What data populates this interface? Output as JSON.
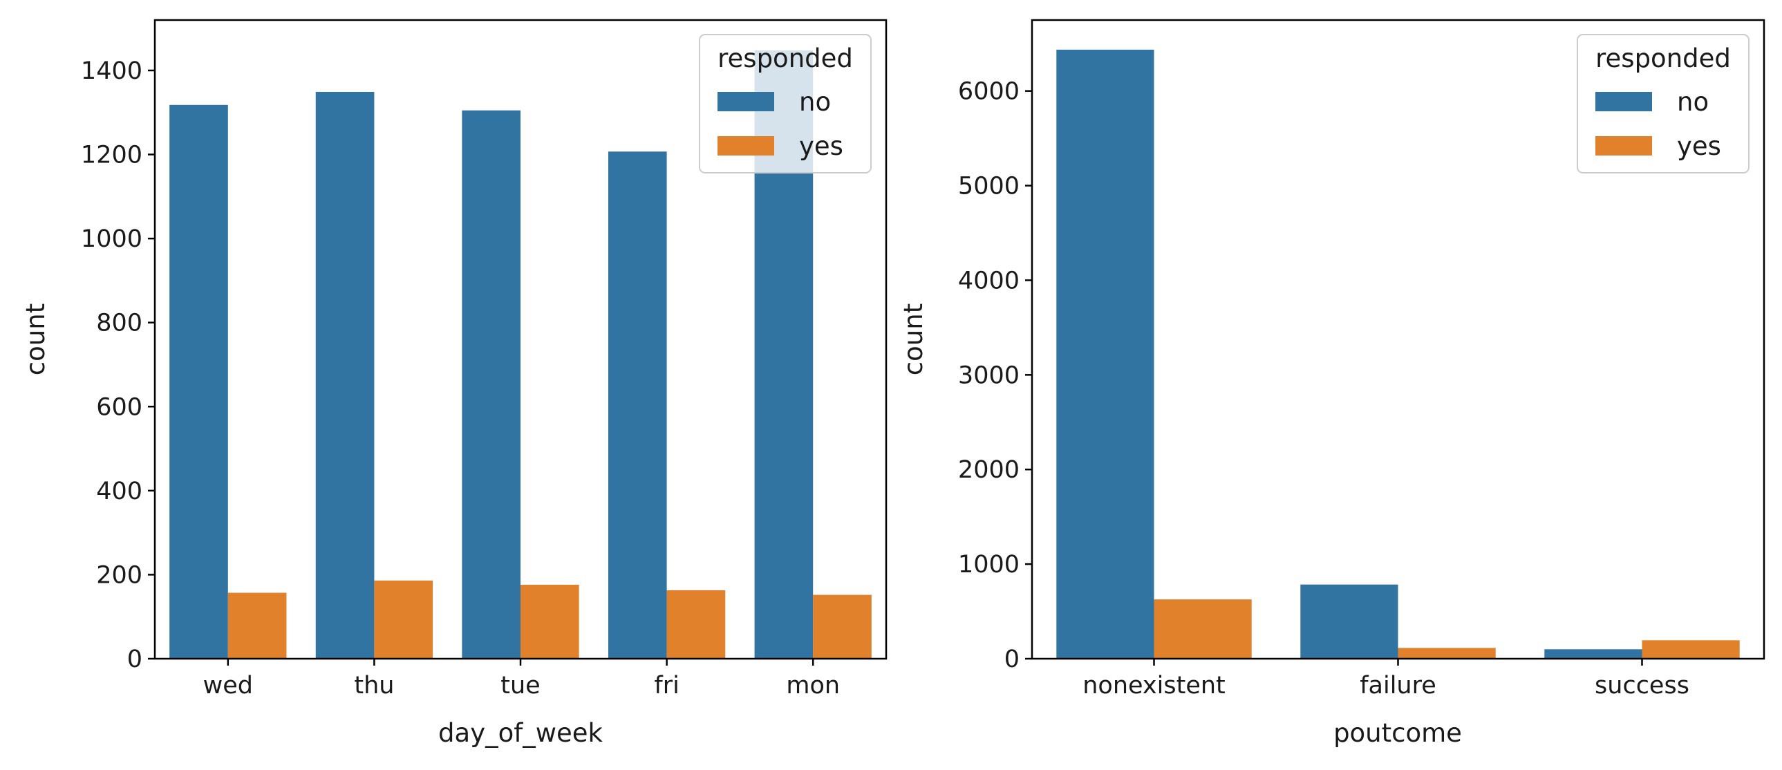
{
  "chart_data": [
    {
      "type": "bar",
      "xlabel": "day_of_week",
      "ylabel": "count",
      "categories": [
        "wed",
        "thu",
        "tue",
        "fri",
        "mon"
      ],
      "series": [
        {
          "name": "no",
          "values": [
            1318,
            1349,
            1305,
            1207,
            1448
          ]
        },
        {
          "name": "yes",
          "values": [
            157,
            186,
            176,
            163,
            152
          ]
        }
      ],
      "ylim": [
        0,
        1520
      ],
      "yticks": [
        0,
        200,
        400,
        600,
        800,
        1000,
        1200,
        1400
      ],
      "legend_title": "responded",
      "legend_position": "top-right",
      "grid": false
    },
    {
      "type": "bar",
      "xlabel": "poutcome",
      "ylabel": "count",
      "categories": [
        "nonexistent",
        "failure",
        "success"
      ],
      "series": [
        {
          "name": "no",
          "values": [
            6437,
            784,
            100
          ]
        },
        {
          "name": "yes",
          "values": [
            627,
            114,
            195
          ]
        }
      ],
      "ylim": [
        0,
        6750
      ],
      "yticks": [
        0,
        1000,
        2000,
        3000,
        4000,
        5000,
        6000
      ],
      "legend_title": "responded",
      "legend_position": "top-right",
      "grid": false
    }
  ],
  "colors": {
    "no": "#3274a1",
    "yes": "#e1812c"
  }
}
